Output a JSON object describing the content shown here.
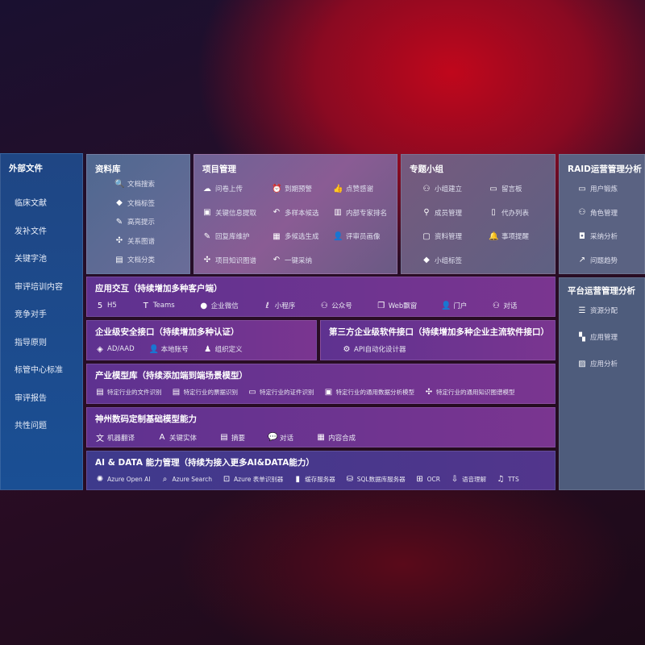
{
  "left": {
    "title": "外部文件",
    "items": [
      "临床文献",
      "发补文件",
      "关键字池",
      "审评培训内容",
      "竞争对手",
      "指导原则",
      "标管中心标准",
      "审评报告",
      "共性问题"
    ]
  },
  "library": {
    "title": "资料库",
    "items": [
      {
        "icon": "doc-search-icon",
        "label": "文档搜索"
      },
      {
        "icon": "tag-icon",
        "label": "文档标签"
      },
      {
        "icon": "pen-icon",
        "label": "高亮提示"
      },
      {
        "icon": "graph-icon",
        "label": "关系图谱"
      },
      {
        "icon": "doc-category-icon",
        "label": "文档分类"
      }
    ]
  },
  "project": {
    "title": "项目管理",
    "items": [
      {
        "icon": "upload-cloud-icon",
        "label": "问卷上传"
      },
      {
        "icon": "alarm-icon",
        "label": "到期预警"
      },
      {
        "icon": "thumbs-up-icon",
        "label": "点赞感谢"
      },
      {
        "icon": "extract-icon",
        "label": "关键信息提取"
      },
      {
        "icon": "reply-icon",
        "label": "多样本候选"
      },
      {
        "icon": "ranking-icon",
        "label": "内部专家排名"
      },
      {
        "icon": "edit-icon",
        "label": "回复库维护"
      },
      {
        "icon": "puzzle-icon",
        "label": "多候选生成"
      },
      {
        "icon": "user-icon",
        "label": "评审员画像"
      },
      {
        "icon": "graph-icon",
        "label": "项目知识图谱"
      },
      {
        "icon": "reply-icon",
        "label": "一键采纳"
      }
    ]
  },
  "group": {
    "title": "专题小组",
    "items": [
      {
        "icon": "users-icon",
        "label": "小组建立"
      },
      {
        "icon": "bbs-icon",
        "label": "留言板"
      },
      {
        "icon": "user-add-icon",
        "label": "成员管理"
      },
      {
        "icon": "clipboard-icon",
        "label": "代办列表"
      },
      {
        "icon": "folder-icon",
        "label": "资料管理"
      },
      {
        "icon": "bell-icon",
        "label": "事项提醒"
      },
      {
        "icon": "tag-icon",
        "label": "小组标签"
      }
    ]
  },
  "raid": {
    "title": "RAID运营管理分析",
    "items": [
      {
        "icon": "id-card-icon",
        "label": "用户锻炼"
      },
      {
        "icon": "users-icon",
        "label": "角色管理"
      },
      {
        "icon": "qa-icon",
        "label": "采纳分析"
      },
      {
        "icon": "trend-icon",
        "label": "问题趋势"
      }
    ]
  },
  "platform": {
    "title": "平台运营管理分析",
    "items": [
      {
        "icon": "list-check-icon",
        "label": "资源分配"
      },
      {
        "icon": "apps-icon",
        "label": "应用管理"
      },
      {
        "icon": "chart-icon",
        "label": "应用分析"
      }
    ]
  },
  "bands": [
    {
      "title": "应用交互（持续增加多种客户端）",
      "items": [
        {
          "icon": "html5-icon",
          "label": "H5"
        },
        {
          "icon": "teams-icon",
          "label": "Teams"
        },
        {
          "icon": "wechat-icon",
          "label": "企业微信"
        },
        {
          "icon": "miniprogram-icon",
          "label": "小程序"
        },
        {
          "icon": "users-icon",
          "label": "公众号"
        },
        {
          "icon": "window-icon",
          "label": "Web飘窗"
        },
        {
          "icon": "portal-icon",
          "label": "门户"
        },
        {
          "icon": "chat-users-icon",
          "label": "对话"
        }
      ]
    },
    {
      "title": "企业级安全接口（持续增加多种认证）",
      "items": [
        {
          "icon": "ad-icon",
          "label": "AD/AAD"
        },
        {
          "icon": "user-icon",
          "label": "本地账号"
        },
        {
          "icon": "org-icon",
          "label": "组织定义"
        }
      ]
    },
    {
      "title": "第三方企业级软件接口（持续增加多种企业主流软件接口）",
      "items": [
        {
          "icon": "gear-icon",
          "label": "API自动化设计器"
        }
      ]
    },
    {
      "title": "产业模型库（持续添加端到端场景模型）",
      "items": [
        {
          "icon": "doc-icon",
          "label": "特定行业的文件识别"
        },
        {
          "icon": "receipt-icon",
          "label": "特定行业的票据识别"
        },
        {
          "icon": "id-card-icon",
          "label": "特定行业的证件识别"
        },
        {
          "icon": "image-icon",
          "label": "特定行业的通用数据分析模型"
        },
        {
          "icon": "graph-icon",
          "label": "特定行业的通用知识图谱模型"
        }
      ]
    },
    {
      "title": "神州数码定制基础模型能力",
      "items": [
        {
          "icon": "translate-icon",
          "label": "机器翻译"
        },
        {
          "icon": "entity-icon",
          "label": "关键实体"
        },
        {
          "icon": "summary-icon",
          "label": "摘要"
        },
        {
          "icon": "chat-icon",
          "label": "对话"
        },
        {
          "icon": "puzzle-icon",
          "label": "内容合成"
        }
      ]
    },
    {
      "title": "AI & DATA 能力管理（持续为接入更多AI&DATA能力）",
      "items": [
        {
          "icon": "openai-icon",
          "label": "Azure Open AI"
        },
        {
          "icon": "search-icon",
          "label": "Azure Search"
        },
        {
          "icon": "form-icon",
          "label": "Azure 表单识别器"
        },
        {
          "icon": "cache-icon",
          "label": "缓存服务器"
        },
        {
          "icon": "database-icon",
          "label": "SQL数据库服务器"
        },
        {
          "icon": "ocr-icon",
          "label": "OCR"
        },
        {
          "icon": "speech-icon",
          "label": "语音理解"
        },
        {
          "icon": "tts-icon",
          "label": "TTS"
        }
      ]
    }
  ]
}
